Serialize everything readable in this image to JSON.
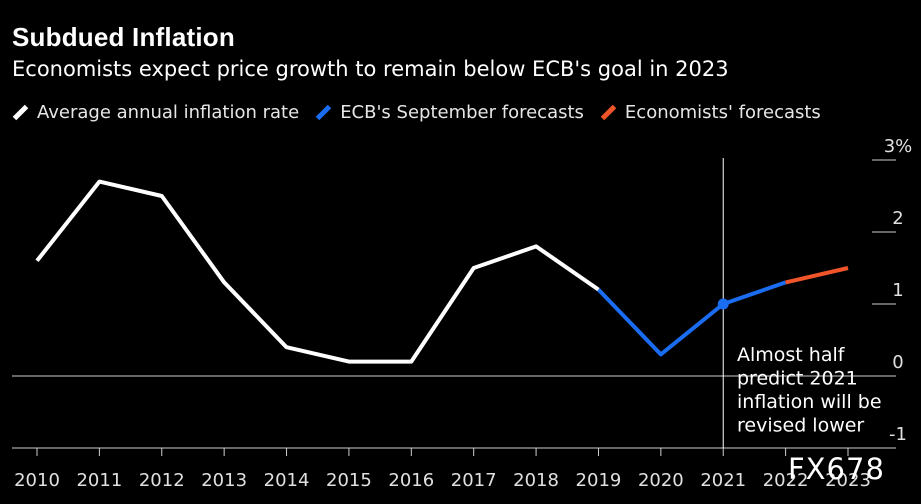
{
  "title": "Subdued Inflation",
  "subtitle": "Economists expect price growth to remain below ECB's goal in 2023",
  "legend": [
    {
      "label": "Average annual inflation rate",
      "color": "#ffffff"
    },
    {
      "label": "ECB's September forecasts",
      "color": "#1a6cf0"
    },
    {
      "label": "Economists' forecasts",
      "color": "#f0552a"
    }
  ],
  "watermark": "FX678",
  "chart_data": {
    "type": "line",
    "title": "Subdued Inflation",
    "x": [
      2010,
      2011,
      2012,
      2013,
      2014,
      2015,
      2016,
      2017,
      2018,
      2019,
      2020,
      2021,
      2022,
      2023
    ],
    "series": [
      {
        "name": "Average annual inflation rate",
        "color": "#ffffff",
        "x": [
          2010,
          2011,
          2012,
          2013,
          2014,
          2015,
          2016,
          2017,
          2018,
          2019
        ],
        "values": [
          1.6,
          2.7,
          2.5,
          1.3,
          0.4,
          0.2,
          0.2,
          1.5,
          1.8,
          1.2
        ]
      },
      {
        "name": "ECB's September forecasts",
        "color": "#1a6cf0",
        "x": [
          2019,
          2020,
          2021,
          2022
        ],
        "values": [
          1.2,
          0.3,
          1.0,
          1.3
        ]
      },
      {
        "name": "Economists' forecasts",
        "color": "#f0552a",
        "x": [
          2022,
          2023
        ],
        "values": [
          1.3,
          1.5
        ]
      }
    ],
    "highlight_point": {
      "x": 2021,
      "y": 1.0,
      "color": "#1a6cf0"
    },
    "y_ticks": [
      {
        "value": 3,
        "label": "3%"
      },
      {
        "value": 2,
        "label": "2"
      },
      {
        "value": 1,
        "label": "1"
      },
      {
        "value": 0,
        "label": "0"
      },
      {
        "value": -1,
        "label": "-1"
      }
    ],
    "x_tick_labels": [
      "2010",
      "2011",
      "2012",
      "2013",
      "2014",
      "2015",
      "2016",
      "2017",
      "2018",
      "2019",
      "2020",
      "2021",
      "2022",
      "2023"
    ],
    "ylim": [
      -1,
      3
    ],
    "xlim": [
      2010,
      2023
    ],
    "vertical_marker_x": 2021,
    "annotation": {
      "lines": [
        "Almost half",
        "predict 2021",
        "inflation will be",
        "revised lower"
      ]
    },
    "xlabel": "",
    "ylabel": ""
  }
}
